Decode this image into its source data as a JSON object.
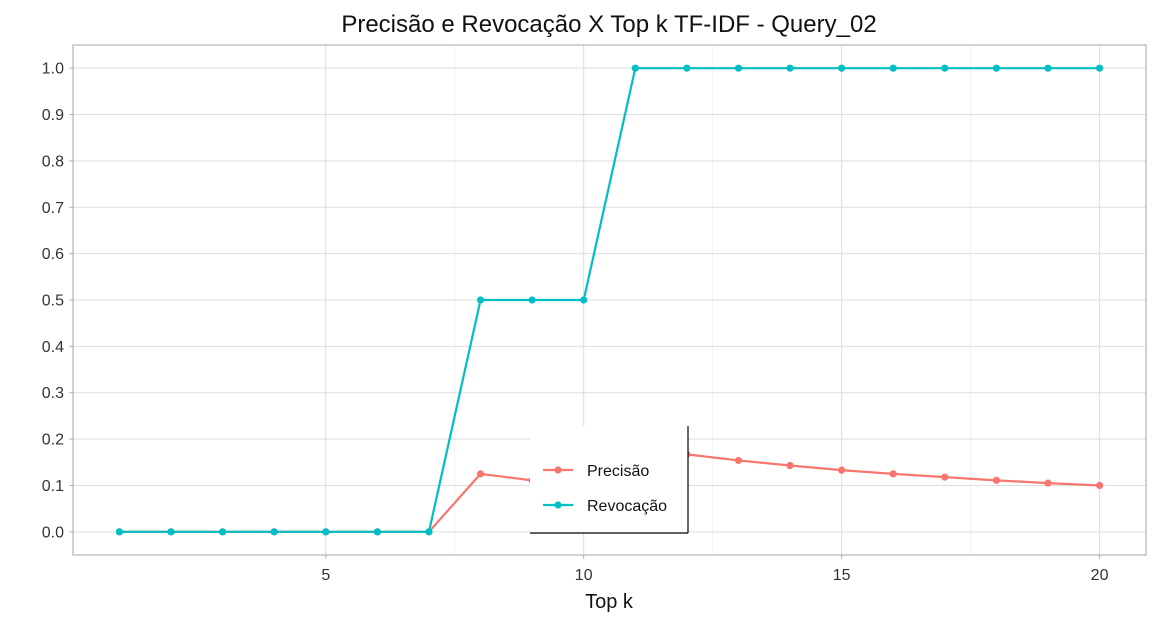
{
  "chart_data": {
    "type": "line",
    "title": "Precisão e Revocação X Top k TF-IDF - Query_02",
    "xlabel": "Top k",
    "ylabel": "",
    "x": [
      1,
      2,
      3,
      4,
      5,
      6,
      7,
      8,
      9,
      10,
      11,
      12,
      13,
      14,
      15,
      16,
      17,
      18,
      19,
      20
    ],
    "xlim": [
      0.1,
      20.9
    ],
    "ylim": [
      -0.05,
      1.05
    ],
    "xticks": [
      5,
      10,
      15,
      20
    ],
    "yticks": [
      0.0,
      0.1,
      0.2,
      0.3,
      0.4,
      0.5,
      0.6,
      0.7,
      0.8,
      0.9,
      1.0
    ],
    "xtick_labels": [
      "5",
      "10",
      "15",
      "20"
    ],
    "ytick_labels": [
      "0.0",
      "0.1",
      "0.2",
      "0.3",
      "0.4",
      "0.5",
      "0.6",
      "0.7",
      "0.8",
      "0.9",
      "1.0"
    ],
    "grid": true,
    "legend_position": "inside-bottom-center",
    "series": [
      {
        "name": "Precisão",
        "color": "#F8766D",
        "values": [
          0,
          0,
          0,
          0,
          0,
          0,
          0,
          0.125,
          0.111,
          0.1,
          0.182,
          0.167,
          0.154,
          0.143,
          0.133,
          0.125,
          0.118,
          0.111,
          0.105,
          0.1
        ]
      },
      {
        "name": "Revocação",
        "color": "#00BFC4",
        "values": [
          0,
          0,
          0,
          0,
          0,
          0,
          0,
          0.5,
          0.5,
          0.5,
          1,
          1,
          1,
          1,
          1,
          1,
          1,
          1,
          1,
          1
        ]
      }
    ]
  }
}
